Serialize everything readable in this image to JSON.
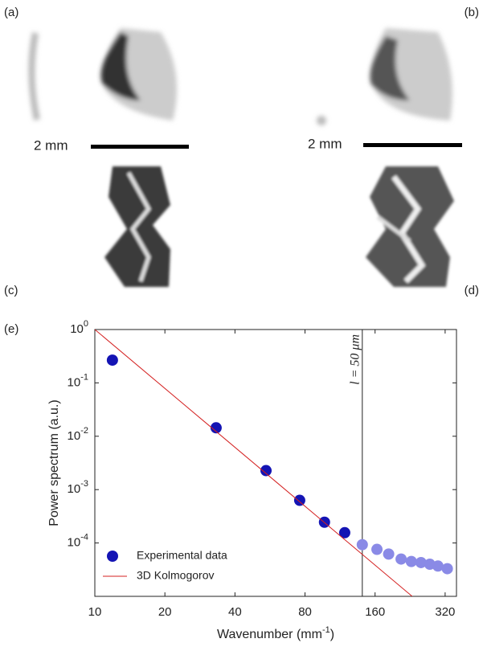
{
  "panel_labels": [
    "(a)",
    "(b)",
    "(c)",
    "(d)"
  ],
  "scale_bars": [
    "2 mm",
    "2 mm"
  ],
  "chart_data": {
    "type": "scatter-line",
    "panel_label": "(e)",
    "x_label": {
      "text": "Wavenumber (mm",
      "sup": "-1",
      "tail": ")"
    },
    "y_label": "Power spectrum (a.u.)",
    "x_log": true,
    "y_log": true,
    "xlim": [
      10,
      358
    ],
    "ylim": [
      1e-05,
      1
    ],
    "xticks": [
      10,
      20,
      40,
      80,
      160,
      320
    ],
    "yticks": [
      {
        "value": 1,
        "label": "10",
        "exponent": "0"
      },
      {
        "value": 0.1,
        "label": "10",
        "exponent": "-1"
      },
      {
        "value": 0.01,
        "label": "10",
        "exponent": "-2"
      },
      {
        "value": 0.001,
        "label": "10",
        "exponent": "-3"
      },
      {
        "value": 0.0001,
        "label": "10",
        "exponent": "-4"
      }
    ],
    "annotation": {
      "x": 141,
      "label": "l = 50 μm"
    },
    "legend": "lower left",
    "series": [
      {
        "name": "Experimental data",
        "style": "markers",
        "color": "#1414b4",
        "faded_color": "#8a8ae6",
        "x": [
          11.9,
          33.2,
          54.4,
          75.9,
          97,
          118.5,
          141,
          163,
          183,
          207,
          229,
          252,
          275,
          298,
          327
        ],
        "values": [
          0.267,
          0.0144,
          0.00227,
          0.00063,
          0.000245,
          0.000156,
          9.3e-05,
          7.6e-05,
          6.2e-05,
          5e-05,
          4.5e-05,
          4.3e-05,
          4e-05,
          3.7e-05,
          3.3e-05
        ]
      },
      {
        "name": "3D Kolmogorov",
        "style": "line",
        "color": "#d42020",
        "x": [
          10,
          231
        ],
        "values": [
          1,
          1e-05
        ]
      }
    ]
  }
}
